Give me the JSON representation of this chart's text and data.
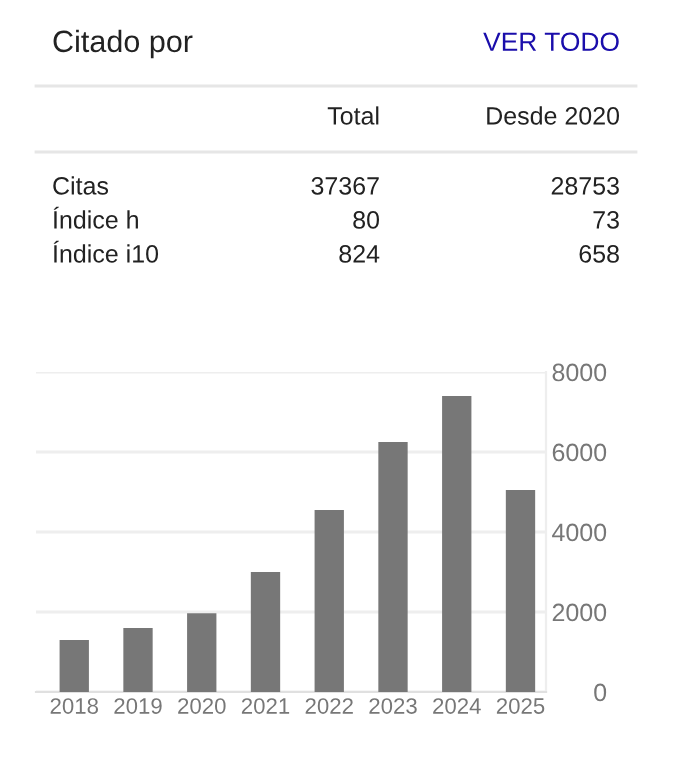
{
  "chart_data": [
    {
      "type": "other",
      "title": "Citado por",
      "annotations": [
        "VER TODO",
        "Total",
        "Desde 2020",
        "Citas",
        "37367",
        "28753",
        "Índice h",
        "80",
        "73",
        "Índice i10",
        "824",
        "658"
      ]
    },
    {
      "type": "bar",
      "categories": [
        "2018",
        "2019",
        "2020",
        "2021",
        "2022",
        "2023",
        "2024",
        "2025"
      ],
      "values": [
        1300,
        1600,
        1970,
        3000,
        4550,
        6250,
        7400,
        5050
      ],
      "color": "#777777",
      "ylim": [
        0,
        8000
      ],
      "yticks": [
        0,
        2000,
        4000,
        6000,
        8000
      ],
      "grid": "y"
    }
  ]
}
